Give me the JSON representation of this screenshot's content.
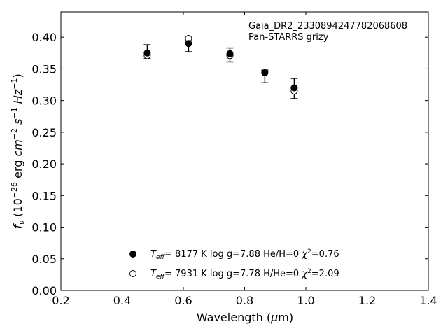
{
  "chart_data": {
    "type": "scatter",
    "xlabel": "Wavelength (μm)",
    "ylabel": "f_ν (10^-26 erg cm^-2 s^-1 Hz^-1)",
    "xlim": [
      0.2,
      1.4
    ],
    "ylim": [
      0.0,
      0.44
    ],
    "x_ticks": [
      0.2,
      0.4,
      0.6,
      0.8,
      1.0,
      1.2,
      1.4
    ],
    "x_tick_labels": [
      "0.2",
      "0.4",
      "0.6",
      "0.8",
      "1.0",
      "1.2",
      "1.4"
    ],
    "y_ticks": [
      0.0,
      0.05,
      0.1,
      0.15,
      0.2,
      0.25,
      0.3,
      0.35,
      0.4
    ],
    "y_tick_labels": [
      "0.00",
      "0.05",
      "0.10",
      "0.15",
      "0.20",
      "0.25",
      "0.30",
      "0.35",
      "0.40"
    ],
    "grid": false,
    "annotations": [
      "Gaia_DR2_2330894247782068608",
      "Pan-STARRS grizy"
    ],
    "observed": {
      "x": [
        0.482,
        0.617,
        0.752,
        0.866,
        0.962
      ],
      "y": [
        0.377,
        0.388,
        0.372,
        0.338,
        0.319
      ],
      "err": [
        0.011,
        0.011,
        0.011,
        0.01,
        0.016
      ]
    },
    "series": [
      {
        "name": "T_eff= 8177 K log g=7.88 He/H=0 χ²=0.76",
        "marker": "filled-circle",
        "x": [
          0.482,
          0.617,
          0.752,
          0.866,
          0.962
        ],
        "y": [
          0.375,
          0.39,
          0.374,
          0.344,
          0.32
        ]
      },
      {
        "name": "T_eff= 7931 K log g=7.78 H/He=0 χ²=2.09",
        "marker": "open-circle",
        "x": [
          0.482,
          0.617,
          0.752,
          0.866,
          0.962
        ],
        "y": [
          0.371,
          0.398,
          0.371,
          0.344,
          0.315
        ]
      }
    ],
    "legend": {
      "placement": "bottom-center",
      "entries": [
        {
          "teff": "8177 K",
          "logg": "log g=7.88",
          "comp": "He/H=0",
          "chi2": "=0.76"
        },
        {
          "teff": "7931 K",
          "logg": "log g=7.78",
          "comp": "H/He=0",
          "chi2": "=2.09"
        }
      ]
    },
    "colors": {
      "marker": "#000000",
      "axis": "#000000",
      "background": "#ffffff"
    }
  }
}
